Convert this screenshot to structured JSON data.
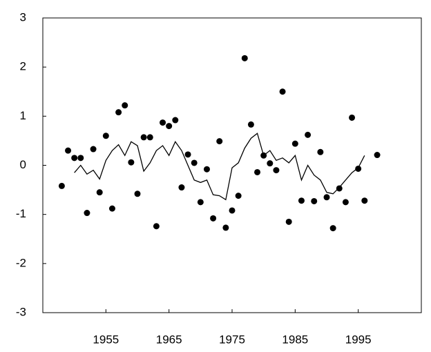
{
  "chart_data": {
    "type": "scatter",
    "xlim": [
      1945,
      2005
    ],
    "xticks": [
      1955,
      1965,
      1975,
      1985,
      1995
    ],
    "ylim": [
      -3,
      3
    ],
    "yticks": [
      -3,
      -2,
      -1,
      0,
      1,
      2,
      3
    ],
    "series": [
      {
        "type": "scatter",
        "color": "#000000",
        "x": [
          1948,
          1949,
          1950,
          1951,
          1952,
          1953,
          1954,
          1955,
          1956,
          1957,
          1958,
          1959,
          1960,
          1961,
          1962,
          1963,
          1964,
          1965,
          1966,
          1967,
          1968,
          1969,
          1970,
          1971,
          1972,
          1973,
          1974,
          1975,
          1976,
          1977,
          1978,
          1979,
          1980,
          1981,
          1982,
          1983,
          1984,
          1985,
          1986,
          1987,
          1988,
          1989,
          1990,
          1991,
          1992,
          1993,
          1994,
          1995,
          1996,
          1998
        ],
        "values": [
          -0.42,
          0.3,
          0.15,
          0.15,
          -0.97,
          0.33,
          -0.55,
          0.6,
          -0.88,
          1.08,
          1.22,
          0.06,
          -0.58,
          0.57,
          0.57,
          -1.24,
          0.87,
          0.8,
          0.92,
          -0.45,
          0.22,
          0.05,
          -0.75,
          -0.08,
          -1.08,
          0.49,
          -1.27,
          -0.92,
          -0.62,
          2.18,
          0.83,
          -0.14,
          0.2,
          0.04,
          -0.1,
          1.5,
          -1.15,
          0.44,
          -0.72,
          0.62,
          -0.73,
          0.27,
          -0.65,
          -1.28,
          -0.47,
          -0.75,
          0.97,
          -0.07,
          -0.72,
          0.21
        ]
      },
      {
        "type": "line",
        "color": "#000000",
        "x": [
          1950,
          1951,
          1952,
          1953,
          1954,
          1955,
          1956,
          1957,
          1958,
          1959,
          1960,
          1961,
          1962,
          1963,
          1964,
          1965,
          1966,
          1967,
          1968,
          1969,
          1970,
          1971,
          1972,
          1973,
          1974,
          1975,
          1976,
          1977,
          1978,
          1979,
          1980,
          1981,
          1982,
          1983,
          1984,
          1985,
          1986,
          1987,
          1988,
          1989,
          1990,
          1991,
          1992,
          1993,
          1994,
          1995,
          1996
        ],
        "values": [
          -0.15,
          0.0,
          -0.18,
          -0.1,
          -0.28,
          0.1,
          0.3,
          0.42,
          0.2,
          0.48,
          0.4,
          -0.12,
          0.05,
          0.3,
          0.4,
          0.2,
          0.48,
          0.3,
          0.0,
          -0.3,
          -0.35,
          -0.3,
          -0.6,
          -0.62,
          -0.7,
          -0.05,
          0.05,
          0.35,
          0.55,
          0.65,
          0.2,
          0.3,
          0.1,
          0.15,
          0.05,
          0.2,
          -0.3,
          0.0,
          -0.2,
          -0.3,
          -0.55,
          -0.58,
          -0.45,
          -0.3,
          -0.15,
          -0.05,
          0.2
        ]
      }
    ]
  }
}
